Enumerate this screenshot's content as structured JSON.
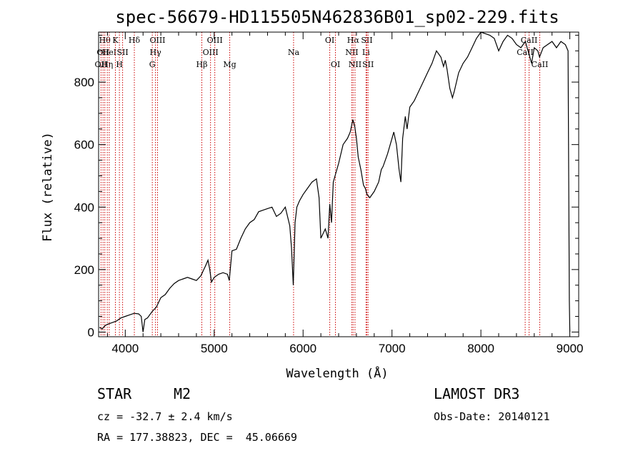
{
  "info": {
    "object_class": "STAR",
    "subclass": "M2",
    "survey": "LAMOST DR3",
    "redshift": "cz = -32.7 ± 2.4 km/s",
    "obs_date": "Obs-Date: 20140121",
    "coords": "RA = 177.38823, DEC =  45.06669"
  },
  "chart_data": {
    "type": "line",
    "title": "spec-56679-HD115505N462836B01_sp02-229.fits",
    "xlabel": "Wavelength (Å)",
    "ylabel": "Flux (relative)",
    "xlim": [
      3700,
      9100
    ],
    "ylim": [
      -15,
      960
    ],
    "xticks": [
      4000,
      5000,
      6000,
      7000,
      8000,
      9000
    ],
    "yticks": [
      0,
      200,
      400,
      600,
      800
    ],
    "line_color": "#000000",
    "marker_color": "#cc0000",
    "series": [
      {
        "name": "flux",
        "x": [
          3710,
          3740,
          3770,
          3800,
          3850,
          3900,
          3950,
          4000,
          4050,
          4100,
          4150,
          4180,
          4200,
          4220,
          4250,
          4300,
          4350,
          4400,
          4450,
          4500,
          4550,
          4600,
          4650,
          4700,
          4750,
          4800,
          4850,
          4900,
          4930,
          4950,
          4970,
          5000,
          5050,
          5100,
          5150,
          5170,
          5200,
          5250,
          5300,
          5350,
          5400,
          5450,
          5500,
          5550,
          5600,
          5650,
          5700,
          5750,
          5800,
          5850,
          5870,
          5890,
          5910,
          5930,
          5960,
          6000,
          6050,
          6100,
          6150,
          6180,
          6200,
          6250,
          6280,
          6300,
          6320,
          6340,
          6400,
          6450,
          6500,
          6530,
          6560,
          6580,
          6600,
          6620,
          6650,
          6680,
          6700,
          6720,
          6750,
          6800,
          6850,
          6880,
          6900,
          6950,
          7000,
          7020,
          7050,
          7080,
          7100,
          7120,
          7150,
          7170,
          7200,
          7250,
          7300,
          7350,
          7400,
          7450,
          7500,
          7550,
          7580,
          7600,
          7620,
          7650,
          7680,
          7700,
          7750,
          7800,
          7850,
          7900,
          7950,
          8000,
          8050,
          8100,
          8150,
          8200,
          8250,
          8300,
          8350,
          8400,
          8450,
          8500,
          8530,
          8550,
          8570,
          8600,
          8640,
          8660,
          8700,
          8750,
          8800,
          8850,
          8900,
          8950,
          8980,
          8995,
          9000
        ],
        "y": [
          15,
          10,
          20,
          25,
          30,
          35,
          45,
          50,
          55,
          60,
          58,
          50,
          0,
          40,
          45,
          65,
          80,
          110,
          120,
          140,
          155,
          165,
          170,
          175,
          170,
          165,
          180,
          210,
          230,
          200,
          160,
          175,
          185,
          190,
          185,
          165,
          260,
          265,
          300,
          330,
          350,
          360,
          385,
          390,
          395,
          400,
          370,
          380,
          400,
          340,
          270,
          150,
          350,
          400,
          420,
          440,
          460,
          480,
          490,
          430,
          300,
          330,
          300,
          410,
          350,
          480,
          540,
          600,
          620,
          640,
          680,
          660,
          620,
          560,
          520,
          470,
          460,
          440,
          430,
          450,
          480,
          520,
          530,
          570,
          620,
          640,
          600,
          520,
          480,
          620,
          690,
          650,
          720,
          740,
          770,
          800,
          830,
          860,
          900,
          880,
          850,
          870,
          840,
          780,
          750,
          770,
          830,
          860,
          880,
          910,
          940,
          960,
          955,
          950,
          940,
          900,
          930,
          950,
          940,
          920,
          910,
          930,
          900,
          880,
          860,
          910,
          900,
          880,
          910,
          920,
          930,
          910,
          930,
          920,
          900,
          100,
          0
        ]
      }
    ],
    "lines": [
      {
        "wl": 3727,
        "label": "OII",
        "row": 2
      },
      {
        "wl": 3750,
        "label": "OII",
        "row": 1
      },
      {
        "wl": 3770,
        "label": "Hθ",
        "row": 0
      },
      {
        "wl": 3798,
        "label": "Hη",
        "row": 2
      },
      {
        "wl": 3820,
        "label": "HeI",
        "row": 1
      },
      {
        "wl": 3889,
        "label": "K",
        "row": 0
      },
      {
        "wl": 3934,
        "label": "H",
        "row": 2
      },
      {
        "wl": 3970,
        "label": "SII",
        "row": 1
      },
      {
        "wl": 4102,
        "label": "Hδ",
        "row": 0
      },
      {
        "wl": 4304,
        "label": "G",
        "row": 2
      },
      {
        "wl": 4340,
        "label": "Hγ",
        "row": 1
      },
      {
        "wl": 4363,
        "label": "OIII",
        "row": 0
      },
      {
        "wl": 4861,
        "label": "Hβ",
        "row": 2
      },
      {
        "wl": 4959,
        "label": "OIII",
        "row": 1
      },
      {
        "wl": 5007,
        "label": "OIII",
        "row": 0
      },
      {
        "wl": 5175,
        "label": "Mg",
        "row": 2
      },
      {
        "wl": 5893,
        "label": "Na",
        "row": 1
      },
      {
        "wl": 6300,
        "label": "OI",
        "row": 0
      },
      {
        "wl": 6364,
        "label": "OI",
        "row": 2
      },
      {
        "wl": 6548,
        "label": "NII",
        "row": 1
      },
      {
        "wl": 6563,
        "label": "Hα",
        "row": 0
      },
      {
        "wl": 6584,
        "label": "NII",
        "row": 2
      },
      {
        "wl": 6708,
        "label": "Li",
        "row": 1
      },
      {
        "wl": 6717,
        "label": "SII",
        "row": 0
      },
      {
        "wl": 6731,
        "label": "SII",
        "row": 2
      },
      {
        "wl": 8498,
        "label": "CaII",
        "row": 1
      },
      {
        "wl": 8542,
        "label": "CaII",
        "row": 0
      },
      {
        "wl": 8662,
        "label": "CaII",
        "row": 2
      }
    ]
  }
}
